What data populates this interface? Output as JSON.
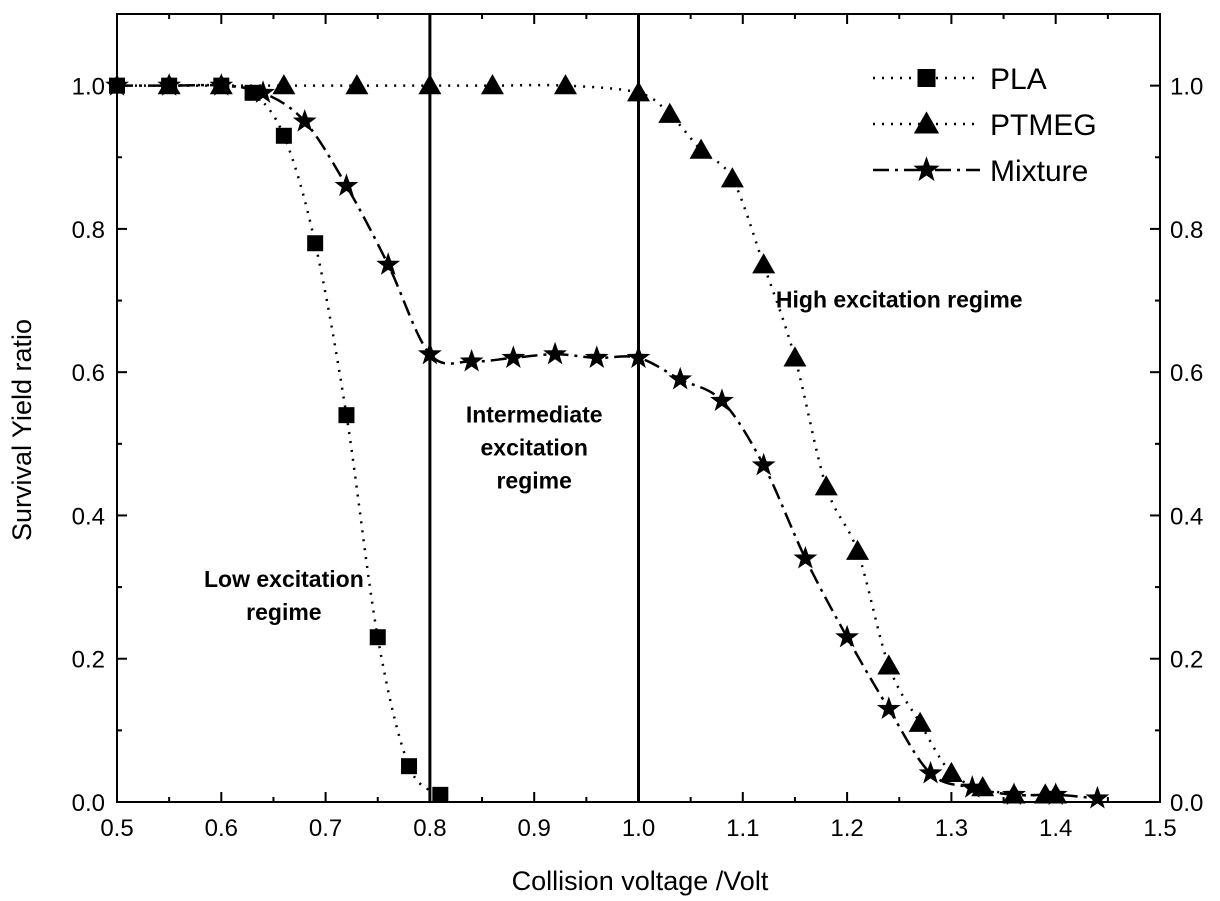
{
  "chart_data": {
    "type": "line",
    "title": "",
    "xlabel": "Collision voltage /Volt",
    "ylabel": "Survival Yield ratio",
    "xlim": [
      0.5,
      1.5
    ],
    "ylim": [
      0.0,
      1.1
    ],
    "x_ticks": [
      0.5,
      0.6,
      0.7,
      0.8,
      0.9,
      1.0,
      1.1,
      1.2,
      1.3,
      1.4,
      1.5
    ],
    "x_tick_labels": [
      "0.5",
      "0.6",
      "0.7",
      "0.8",
      "0.9",
      "1.0",
      "1.1",
      "1.2",
      "1.3",
      "1.4",
      "1.5"
    ],
    "y_ticks": [
      0.0,
      0.2,
      0.4,
      0.6,
      0.8,
      1.0
    ],
    "y_tick_labels": [
      "0.0",
      "0.2",
      "0.4",
      "0.6",
      "0.8",
      "1.0"
    ],
    "right_axis_mirror": true,
    "grid": false,
    "legend_position": "top-right",
    "vertical_lines": [
      0.8,
      1.0
    ],
    "series": [
      {
        "name": "PLA",
        "marker": "square",
        "line_style": "dotted",
        "x": [
          0.5,
          0.55,
          0.6,
          0.63,
          0.66,
          0.69,
          0.72,
          0.75,
          0.78,
          0.81
        ],
        "y": [
          1.0,
          1.0,
          1.0,
          0.99,
          0.93,
          0.78,
          0.54,
          0.23,
          0.05,
          0.01
        ]
      },
      {
        "name": "PTMEG",
        "marker": "triangle",
        "line_style": "dotted",
        "x": [
          0.55,
          0.6,
          0.66,
          0.73,
          0.8,
          0.86,
          0.93,
          1.0,
          1.03,
          1.06,
          1.09,
          1.12,
          1.15,
          1.18,
          1.21,
          1.24,
          1.27,
          1.3,
          1.33,
          1.36,
          1.39,
          1.4
        ],
        "y": [
          1.0,
          1.0,
          1.0,
          1.0,
          1.0,
          1.0,
          1.0,
          0.99,
          0.96,
          0.91,
          0.87,
          0.75,
          0.62,
          0.44,
          0.35,
          0.19,
          0.11,
          0.04,
          0.02,
          0.01,
          0.01,
          0.01
        ]
      },
      {
        "name": "Mixture",
        "marker": "star",
        "line_style": "dash-dot",
        "x": [
          0.5,
          0.55,
          0.6,
          0.64,
          0.68,
          0.72,
          0.76,
          0.8,
          0.84,
          0.88,
          0.92,
          0.96,
          1.0,
          1.04,
          1.08,
          1.12,
          1.16,
          1.2,
          1.24,
          1.28,
          1.32,
          1.36,
          1.4,
          1.44
        ],
        "y": [
          1.0,
          1.0,
          1.0,
          0.99,
          0.95,
          0.86,
          0.75,
          0.625,
          0.615,
          0.62,
          0.625,
          0.62,
          0.62,
          0.59,
          0.56,
          0.47,
          0.34,
          0.23,
          0.13,
          0.04,
          0.02,
          0.01,
          0.01,
          0.005
        ]
      }
    ],
    "annotations": [
      {
        "lines": [
          "Low excitation",
          "regime"
        ],
        "x": 0.66,
        "y": 0.3
      },
      {
        "lines": [
          "Intermediate",
          "excitation",
          "regime"
        ],
        "x": 0.9,
        "y": 0.53
      },
      {
        "lines": [
          "High excitation regime"
        ],
        "x": 1.25,
        "y": 0.69
      }
    ]
  }
}
